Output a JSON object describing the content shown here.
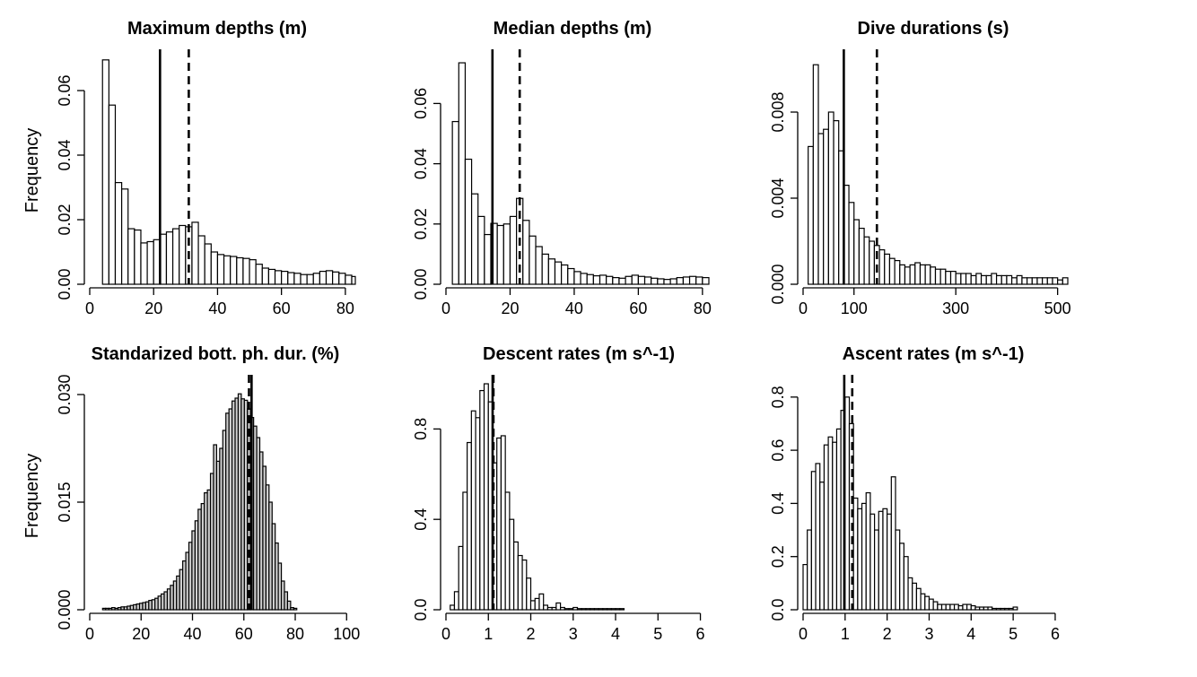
{
  "figure": {
    "y_axis_label": "Frequency"
  },
  "chart_data": [
    {
      "type": "bar",
      "title": "Maximum depths (m)",
      "ylabel": "Frequency",
      "xlim": [
        0,
        82
      ],
      "ylim": [
        0,
        0.07
      ],
      "xticks": [
        0,
        20,
        40,
        60,
        80
      ],
      "yticks": [
        "0.00",
        "0.02",
        "0.04",
        "0.06"
      ],
      "bin_width": 2,
      "bin_start": 4,
      "values": [
        0.0695,
        0.0555,
        0.0315,
        0.0295,
        0.0172,
        0.0168,
        0.0128,
        0.0132,
        0.0138,
        0.0155,
        0.0162,
        0.0172,
        0.0182,
        0.0178,
        0.0192,
        0.015,
        0.0125,
        0.01,
        0.0092,
        0.0088,
        0.0086,
        0.0082,
        0.008,
        0.0076,
        0.0062,
        0.005,
        0.0046,
        0.0042,
        0.004,
        0.0036,
        0.0034,
        0.003,
        0.003,
        0.0034,
        0.004,
        0.0042,
        0.0038,
        0.0034,
        0.0028,
        0.0024,
        0.0022,
        0.0024
      ],
      "vlines": [
        {
          "x": 22,
          "style": "solid"
        },
        {
          "x": 31,
          "style": "dashed"
        }
      ]
    },
    {
      "type": "bar",
      "title": "Median depths (m)",
      "ylabel": "",
      "xlim": [
        0,
        82
      ],
      "ylim": [
        0,
        0.075
      ],
      "xticks": [
        0,
        20,
        40,
        60,
        80
      ],
      "yticks": [
        "0.00",
        "0.02",
        "0.04",
        "0.06"
      ],
      "bin_width": 2,
      "bin_start": 2,
      "values": [
        0.054,
        0.0735,
        0.0415,
        0.03,
        0.0225,
        0.0165,
        0.0202,
        0.0195,
        0.02,
        0.0225,
        0.0285,
        0.0212,
        0.016,
        0.0125,
        0.01,
        0.0084,
        0.0074,
        0.0064,
        0.0052,
        0.0042,
        0.0036,
        0.0032,
        0.0028,
        0.003,
        0.0026,
        0.0022,
        0.002,
        0.0026,
        0.003,
        0.0026,
        0.0024,
        0.002,
        0.0018,
        0.0016,
        0.0018,
        0.0022,
        0.0024,
        0.0026,
        0.0024,
        0.0022
      ],
      "vlines": [
        {
          "x": 14.5,
          "style": "solid"
        },
        {
          "x": 23,
          "style": "dashed"
        }
      ]
    },
    {
      "type": "bar",
      "title": "Dive durations (s)",
      "ylabel": "",
      "xlim": [
        0,
        520
      ],
      "ylim": [
        0,
        0.0105
      ],
      "xticks": [
        0,
        100,
        300,
        500
      ],
      "yticks": [
        "0.000",
        "0.004",
        "0.008"
      ],
      "bin_width": 10,
      "bin_start": 10,
      "values": [
        0.0064,
        0.0102,
        0.007,
        0.0072,
        0.008,
        0.0076,
        0.0062,
        0.0046,
        0.0038,
        0.003,
        0.0026,
        0.0022,
        0.002,
        0.0018,
        0.0016,
        0.0014,
        0.0012,
        0.0011,
        0.0009,
        0.0008,
        0.0009,
        0.001,
        0.0009,
        0.0009,
        0.0008,
        0.0007,
        0.0007,
        0.0006,
        0.0006,
        0.0005,
        0.0005,
        0.0005,
        0.0004,
        0.0005,
        0.0004,
        0.0004,
        0.0005,
        0.0004,
        0.0004,
        0.0004,
        0.0003,
        0.0004,
        0.0003,
        0.0003,
        0.0003,
        0.0003,
        0.0003,
        0.0003,
        0.0003,
        0.0002,
        0.0003
      ],
      "vlines": [
        {
          "x": 80,
          "style": "solid"
        },
        {
          "x": 145,
          "style": "dashed"
        }
      ]
    },
    {
      "type": "bar",
      "title": "Standarized bott. ph. dur. (%)",
      "ylabel": "Frequency",
      "xlim": [
        0,
        102
      ],
      "ylim": [
        0,
        0.0315
      ],
      "xticks": [
        0,
        20,
        40,
        60,
        80,
        100
      ],
      "yticks": [
        "0.000",
        "0.015",
        "0.030"
      ],
      "bin_width": 1.2,
      "bin_start": 5,
      "values": [
        0.0002,
        0.0002,
        0.0002,
        0.0003,
        0.0002,
        0.0003,
        0.0004,
        0.0004,
        0.0005,
        0.0006,
        0.0007,
        0.0008,
        0.0009,
        0.001,
        0.0011,
        0.0013,
        0.0014,
        0.0016,
        0.0019,
        0.0022,
        0.0025,
        0.0029,
        0.0034,
        0.004,
        0.0047,
        0.0056,
        0.0068,
        0.008,
        0.0094,
        0.011,
        0.0124,
        0.014,
        0.0148,
        0.0163,
        0.0167,
        0.019,
        0.023,
        0.0207,
        0.0225,
        0.025,
        0.0274,
        0.028,
        0.0291,
        0.0295,
        0.0301,
        0.0294,
        0.0292,
        0.028,
        0.0268,
        0.0256,
        0.024,
        0.022,
        0.02,
        0.0174,
        0.015,
        0.012,
        0.0093,
        0.0065,
        0.004,
        0.0025,
        0.0012,
        0.0003,
        0.0002
      ],
      "vlines": [
        {
          "x": 62,
          "style": "dashed"
        },
        {
          "x": 63,
          "style": "solid"
        }
      ]
    },
    {
      "type": "bar",
      "title": "Descent rates (m s^-1)",
      "ylabel": "",
      "xlim": [
        0,
        6.2
      ],
      "ylim": [
        0,
        1.0
      ],
      "xticks": [
        0,
        1,
        2,
        3,
        4,
        5,
        6
      ],
      "yticks": [
        "0.0",
        "0.4",
        "0.8"
      ],
      "bin_width": 0.1,
      "bin_start": 0.1,
      "values": [
        0.02,
        0.08,
        0.28,
        0.52,
        0.74,
        0.88,
        0.85,
        0.97,
        1.0,
        0.92,
        0.65,
        0.76,
        0.77,
        0.52,
        0.4,
        0.3,
        0.24,
        0.22,
        0.14,
        0.04,
        0.05,
        0.07,
        0.02,
        0.01,
        0.01,
        0.03,
        0.01,
        0.005,
        0.005,
        0.01,
        0.005,
        0.005,
        0.005,
        0.005,
        0.005,
        0.005,
        0.005,
        0.005,
        0.005,
        0.005,
        0.005
      ],
      "vlines": [
        {
          "x": 1.1,
          "style": "solid"
        },
        {
          "x": 1.12,
          "style": "dashed"
        }
      ]
    },
    {
      "type": "bar",
      "title": "Ascent rates (m s^-1)",
      "ylabel": "",
      "xlim": [
        0,
        6.3
      ],
      "ylim": [
        0,
        0.85
      ],
      "xticks": [
        0,
        1,
        2,
        3,
        4,
        5,
        6
      ],
      "yticks": [
        "0.0",
        "0.2",
        "0.4",
        "0.6",
        "0.8"
      ],
      "bin_width": 0.1,
      "bin_start": 0.0,
      "values": [
        0.17,
        0.3,
        0.52,
        0.55,
        0.48,
        0.62,
        0.65,
        0.63,
        0.68,
        0.75,
        0.8,
        0.7,
        0.42,
        0.38,
        0.4,
        0.44,
        0.36,
        0.3,
        0.37,
        0.38,
        0.36,
        0.5,
        0.3,
        0.25,
        0.2,
        0.12,
        0.1,
        0.08,
        0.06,
        0.05,
        0.04,
        0.03,
        0.02,
        0.02,
        0.02,
        0.02,
        0.02,
        0.015,
        0.02,
        0.02,
        0.015,
        0.01,
        0.01,
        0.01,
        0.01,
        0.005,
        0.005,
        0.005,
        0.005,
        0.005,
        0.01
      ],
      "vlines": [
        {
          "x": 0.98,
          "style": "solid"
        },
        {
          "x": 1.17,
          "style": "dashed"
        }
      ]
    }
  ]
}
